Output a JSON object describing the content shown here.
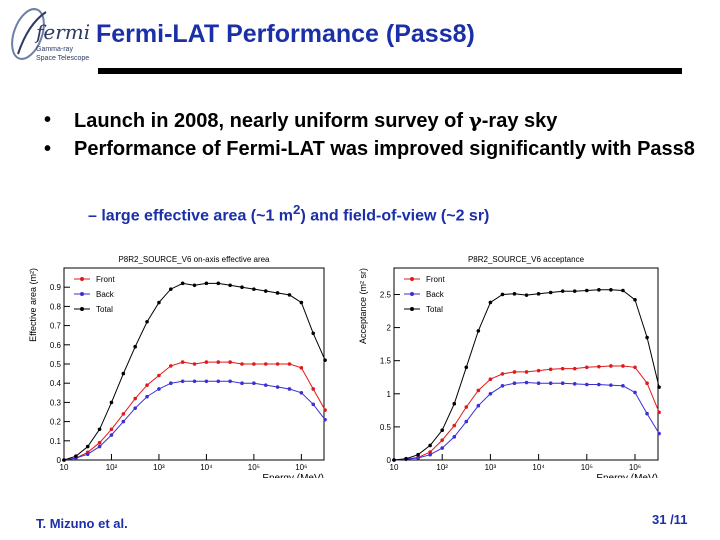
{
  "logo": {
    "script_text": "fermi",
    "line1": "Gamma-ray",
    "line2": "Space Telescope"
  },
  "title": "Fermi-LAT Performance (Pass8)",
  "bullets": [
    {
      "parts": [
        "Launch in 2008, nearly uniform survey of ",
        "γ",
        "-ray sky"
      ]
    },
    {
      "parts": [
        "Performance of Fermi-LAT was improved significantly with Pass8"
      ]
    }
  ],
  "bullet_glyph": "•",
  "sub_bullet": {
    "dash": "–",
    "pre": "large effective area (~1 m",
    "sup": "2",
    "post": ") and field-of-view (~2 sr)"
  },
  "footer": {
    "author": "T. Mizuno et al.",
    "page": "31 /11"
  },
  "colors": {
    "title": "#1a2fa8",
    "front": "#e0191a",
    "back": "#3b2fd6",
    "total": "#000000"
  },
  "chart_data": [
    {
      "type": "line",
      "title": "P8R2_SOURCE_V6 on-axis effective area",
      "xlabel": "Energy (MeV)",
      "ylabel": "Effective area (m²)",
      "xscale": "log",
      "xlim": [
        10,
        3000000
      ],
      "ylim": [
        0,
        1.0
      ],
      "xticks": [
        {
          "v": 10,
          "t": "10"
        },
        {
          "v": 100,
          "t": "10²"
        },
        {
          "v": 1000,
          "t": "10³"
        },
        {
          "v": 10000,
          "t": "10⁴"
        },
        {
          "v": 100000,
          "t": "10⁵"
        },
        {
          "v": 1000000,
          "t": "10⁶"
        }
      ],
      "yticks": [
        {
          "v": 0,
          "t": "0"
        },
        {
          "v": 0.1,
          "t": "0.1"
        },
        {
          "v": 0.2,
          "t": "0.2"
        },
        {
          "v": 0.3,
          "t": "0.3"
        },
        {
          "v": 0.4,
          "t": "0.4"
        },
        {
          "v": 0.5,
          "t": "0.5"
        },
        {
          "v": 0.6,
          "t": "0.6"
        },
        {
          "v": 0.7,
          "t": "0.7"
        },
        {
          "v": 0.8,
          "t": "0.8"
        },
        {
          "v": 0.9,
          "t": "0.9"
        }
      ],
      "grid": false,
      "legend_position": "top-left",
      "x": [
        10,
        17.8,
        31.6,
        56.2,
        100,
        178,
        316,
        562,
        1000,
        1780,
        3160,
        5620,
        10000,
        17800,
        31600,
        56200,
        100000,
        178000,
        316000,
        562000,
        1000000,
        1780000,
        3160000
      ],
      "series": [
        {
          "name": "Front",
          "color": "#e0191a",
          "values": [
            0.0,
            0.01,
            0.04,
            0.09,
            0.16,
            0.24,
            0.32,
            0.39,
            0.44,
            0.49,
            0.51,
            0.5,
            0.51,
            0.51,
            0.51,
            0.5,
            0.5,
            0.5,
            0.5,
            0.5,
            0.48,
            0.37,
            0.26
          ]
        },
        {
          "name": "Back",
          "color": "#3b2fd6",
          "values": [
            0.0,
            0.01,
            0.03,
            0.07,
            0.13,
            0.2,
            0.27,
            0.33,
            0.37,
            0.4,
            0.41,
            0.41,
            0.41,
            0.41,
            0.41,
            0.4,
            0.4,
            0.39,
            0.38,
            0.37,
            0.35,
            0.29,
            0.21
          ]
        },
        {
          "name": "Total",
          "color": "#000000",
          "values": [
            0.0,
            0.02,
            0.07,
            0.16,
            0.3,
            0.45,
            0.59,
            0.72,
            0.82,
            0.89,
            0.92,
            0.91,
            0.92,
            0.92,
            0.91,
            0.9,
            0.89,
            0.88,
            0.87,
            0.86,
            0.82,
            0.66,
            0.52
          ]
        }
      ]
    },
    {
      "type": "line",
      "title": "P8R2_SOURCE_V6 acceptance",
      "xlabel": "Energy (MeV)",
      "ylabel": "Acceptance (m² sr)",
      "xscale": "log",
      "xlim": [
        10,
        3000000
      ],
      "ylim": [
        0,
        2.9
      ],
      "xticks": [
        {
          "v": 10,
          "t": "10"
        },
        {
          "v": 100,
          "t": "10²"
        },
        {
          "v": 1000,
          "t": "10³"
        },
        {
          "v": 10000,
          "t": "10⁴"
        },
        {
          "v": 100000,
          "t": "10⁵"
        },
        {
          "v": 1000000,
          "t": "10⁶"
        }
      ],
      "yticks": [
        {
          "v": 0,
          "t": "0"
        },
        {
          "v": 0.5,
          "t": "0.5"
        },
        {
          "v": 1,
          "t": "1"
        },
        {
          "v": 1.5,
          "t": "1.5"
        },
        {
          "v": 2,
          "t": "2"
        },
        {
          "v": 2.5,
          "t": "2.5"
        }
      ],
      "grid": false,
      "legend_position": "top-left",
      "x": [
        10,
        17.8,
        31.6,
        56.2,
        100,
        178,
        316,
        562,
        1000,
        1780,
        3160,
        5620,
        10000,
        17800,
        31600,
        56200,
        100000,
        178000,
        316000,
        562000,
        1000000,
        1780000,
        3160000
      ],
      "series": [
        {
          "name": "Front",
          "color": "#e0191a",
          "values": [
            0.0,
            0.01,
            0.04,
            0.12,
            0.3,
            0.52,
            0.8,
            1.05,
            1.22,
            1.3,
            1.33,
            1.33,
            1.35,
            1.37,
            1.38,
            1.38,
            1.4,
            1.41,
            1.42,
            1.42,
            1.4,
            1.16,
            0.72
          ]
        },
        {
          "name": "Back",
          "color": "#3b2fd6",
          "values": [
            0.0,
            0.01,
            0.03,
            0.08,
            0.18,
            0.35,
            0.58,
            0.82,
            1.0,
            1.12,
            1.16,
            1.17,
            1.16,
            1.16,
            1.16,
            1.15,
            1.14,
            1.14,
            1.13,
            1.12,
            1.02,
            0.7,
            0.4
          ]
        },
        {
          "name": "Total",
          "color": "#000000",
          "values": [
            0.0,
            0.02,
            0.08,
            0.22,
            0.45,
            0.85,
            1.4,
            1.95,
            2.38,
            2.5,
            2.51,
            2.49,
            2.51,
            2.53,
            2.55,
            2.55,
            2.56,
            2.57,
            2.57,
            2.56,
            2.42,
            1.85,
            1.1
          ]
        }
      ]
    }
  ]
}
